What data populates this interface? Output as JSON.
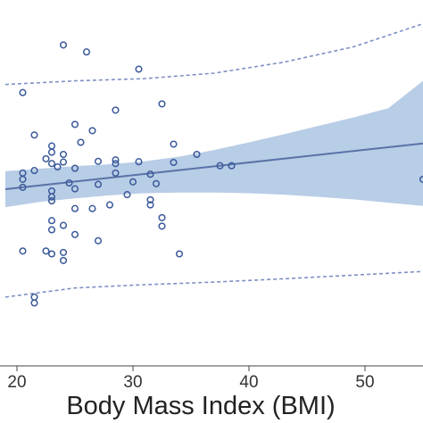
{
  "chart_data": {
    "type": "scatter",
    "title": "",
    "xlabel": "Body Mass Index (BMI)",
    "ylabel": "",
    "xlim": [
      19,
      55
    ],
    "ylim": [
      0,
      1
    ],
    "x_ticks": [
      20,
      30,
      40,
      50
    ],
    "x_tick_labels": [
      "20",
      "30",
      "40",
      "50"
    ],
    "grid": false,
    "legend": "none",
    "colors": {
      "points": "#3b5a9a",
      "fit_line": "#5a72a8",
      "ci_band": "#b8cde6",
      "prediction_band": "#7f90c4"
    },
    "points": [
      {
        "x": 24.0,
        "y": 0.877
      },
      {
        "x": 26.0,
        "y": 0.858
      },
      {
        "x": 20.5,
        "y": 0.747
      },
      {
        "x": 30.5,
        "y": 0.811
      },
      {
        "x": 32.5,
        "y": 0.716
      },
      {
        "x": 28.5,
        "y": 0.699
      },
      {
        "x": 26.5,
        "y": 0.643
      },
      {
        "x": 21.5,
        "y": 0.631
      },
      {
        "x": 25.0,
        "y": 0.66
      },
      {
        "x": 25.5,
        "y": 0.611
      },
      {
        "x": 23.0,
        "y": 0.601
      },
      {
        "x": 33.5,
        "y": 0.606
      },
      {
        "x": 23.0,
        "y": 0.584
      },
      {
        "x": 24.0,
        "y": 0.578
      },
      {
        "x": 35.5,
        "y": 0.578
      },
      {
        "x": 22.5,
        "y": 0.566
      },
      {
        "x": 23.0,
        "y": 0.553
      },
      {
        "x": 24.0,
        "y": 0.557
      },
      {
        "x": 27.0,
        "y": 0.559
      },
      {
        "x": 28.5,
        "y": 0.563
      },
      {
        "x": 28.5,
        "y": 0.553
      },
      {
        "x": 30.5,
        "y": 0.558
      },
      {
        "x": 33.5,
        "y": 0.556
      },
      {
        "x": 37.5,
        "y": 0.547
      },
      {
        "x": 38.5,
        "y": 0.547
      },
      {
        "x": 20.5,
        "y": 0.527
      },
      {
        "x": 21.5,
        "y": 0.534
      },
      {
        "x": 23.5,
        "y": 0.544
      },
      {
        "x": 25.0,
        "y": 0.54
      },
      {
        "x": 28.5,
        "y": 0.527
      },
      {
        "x": 31.5,
        "y": 0.524
      },
      {
        "x": 20.5,
        "y": 0.51
      },
      {
        "x": 24.5,
        "y": 0.5
      },
      {
        "x": 27.0,
        "y": 0.496
      },
      {
        "x": 30.0,
        "y": 0.503
      },
      {
        "x": 32.0,
        "y": 0.498
      },
      {
        "x": 20.5,
        "y": 0.488
      },
      {
        "x": 23.0,
        "y": 0.478
      },
      {
        "x": 25.0,
        "y": 0.484
      },
      {
        "x": 23.0,
        "y": 0.462
      },
      {
        "x": 29.5,
        "y": 0.468
      },
      {
        "x": 31.5,
        "y": 0.454
      },
      {
        "x": 23.0,
        "y": 0.451
      },
      {
        "x": 28.0,
        "y": 0.44
      },
      {
        "x": 31.5,
        "y": 0.44
      },
      {
        "x": 25.0,
        "y": 0.43
      },
      {
        "x": 26.5,
        "y": 0.43
      },
      {
        "x": 32.5,
        "y": 0.405
      },
      {
        "x": 23.0,
        "y": 0.397
      },
      {
        "x": 24.0,
        "y": 0.384
      },
      {
        "x": 25.0,
        "y": 0.359
      },
      {
        "x": 23.0,
        "y": 0.372
      },
      {
        "x": 27.0,
        "y": 0.342
      },
      {
        "x": 32.5,
        "y": 0.382
      },
      {
        "x": 20.5,
        "y": 0.314
      },
      {
        "x": 22.5,
        "y": 0.314
      },
      {
        "x": 24.0,
        "y": 0.31
      },
      {
        "x": 23.0,
        "y": 0.306
      },
      {
        "x": 34.0,
        "y": 0.306
      },
      {
        "x": 24.0,
        "y": 0.288
      },
      {
        "x": 21.5,
        "y": 0.188
      },
      {
        "x": 21.5,
        "y": 0.172
      },
      {
        "x": 55.0,
        "y": 0.51
      }
    ],
    "fit_line": [
      {
        "x": 19,
        "y": 0.483
      },
      {
        "x": 55,
        "y": 0.608
      }
    ],
    "confidence_band": {
      "x": [
        19,
        22,
        25,
        28,
        31,
        34,
        37,
        40,
        43,
        46,
        49,
        52,
        55
      ],
      "lower": [
        0.434,
        0.448,
        0.458,
        0.466,
        0.472,
        0.474,
        0.474,
        0.472,
        0.468,
        0.462,
        0.455,
        0.446,
        0.437
      ],
      "upper": [
        0.532,
        0.539,
        0.546,
        0.551,
        0.559,
        0.572,
        0.59,
        0.611,
        0.633,
        0.656,
        0.679,
        0.704,
        0.779
      ]
    },
    "prediction_band": {
      "x": [
        19,
        25,
        31,
        37,
        43,
        49,
        55
      ],
      "lower": [
        0.188,
        0.213,
        0.222,
        0.229,
        0.238,
        0.248,
        0.258
      ],
      "upper": [
        0.769,
        0.779,
        0.785,
        0.8,
        0.83,
        0.872,
        0.935
      ]
    }
  }
}
